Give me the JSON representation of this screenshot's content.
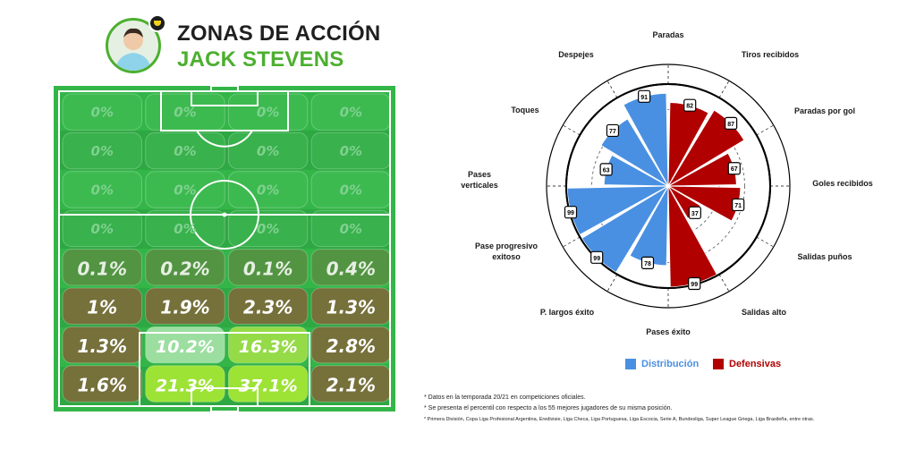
{
  "header": {
    "title": "ZONAS DE ACCIÓN",
    "player_name": "JACK STEVENS"
  },
  "chart_data": [
    {
      "type": "heatmap",
      "rows": 8,
      "cols": 4,
      "orientation": "attack upward, own goal at bottom",
      "values": [
        [
          "0%",
          "0%",
          "0%",
          "0%"
        ],
        [
          "0%",
          "0%",
          "0%",
          "0%"
        ],
        [
          "0%",
          "0%",
          "0%",
          "0%"
        ],
        [
          "0%",
          "0%",
          "0%",
          "0%"
        ],
        [
          "0.1%",
          "0.2%",
          "0.1%",
          "0.4%"
        ],
        [
          "1%",
          "1.9%",
          "2.3%",
          "1.3%"
        ],
        [
          "1.3%",
          "10.2%",
          "16.3%",
          "2.8%"
        ],
        [
          "1.6%",
          "21.3%",
          "37.1%",
          "2.1%"
        ]
      ],
      "colors": {
        "grass": "#33b548",
        "grass_stripe": "#2ea843",
        "low": "#7a6d3b",
        "mid": "#8fd67a",
        "high": "#a3e635",
        "line": "#ffffff"
      }
    },
    {
      "type": "polar-bar",
      "scale_max": 100,
      "rings": [
        25,
        50,
        75,
        100
      ],
      "metrics": [
        {
          "label": "Paradas",
          "value": 82,
          "group": "Defensivas"
        },
        {
          "label": "Tiros recibidos",
          "value": 87,
          "group": "Defensivas"
        },
        {
          "label": "Paradas por gol",
          "value": 67,
          "group": "Defensivas"
        },
        {
          "label": "Goles recibidos",
          "value": 71,
          "group": "Defensivas"
        },
        {
          "label": "Salidas puños",
          "value": 37,
          "group": "Defensivas"
        },
        {
          "label": "Salidas alto",
          "value": 99,
          "group": "Defensivas"
        },
        {
          "label": "Pases éxito",
          "value": 78,
          "group": "Distribución"
        },
        {
          "label": "P. largos éxito",
          "value": 99,
          "group": "Distribución"
        },
        {
          "label": "Pase progresivo exitoso",
          "value": 99,
          "group": "Distribución"
        },
        {
          "label": "Pases verticales",
          "value": 63,
          "group": "Distribución"
        },
        {
          "label": "Toques",
          "value": 77,
          "group": "Distribución"
        },
        {
          "label": "Despejes",
          "value": 91,
          "group": "Distribución"
        }
      ],
      "legend": [
        {
          "name": "Distribución",
          "color": "#4a90e2"
        },
        {
          "name": "Defensivas",
          "color": "#b00000"
        }
      ]
    }
  ],
  "footnotes": [
    "* Datos en la temporada 20/21 en competiciones oficiales.",
    "* Se presenta el percentil con respecto a los 55 mejores jugadores de su misma posición.",
    "* Primera División, Copa Liga Profesional Argentina, Eredivisie, Liga Checa, Liga Portuguesa, Liga Escocia, Serie A, Bundesliga, Super League Griega, Liga Brasileña, entre otras."
  ]
}
